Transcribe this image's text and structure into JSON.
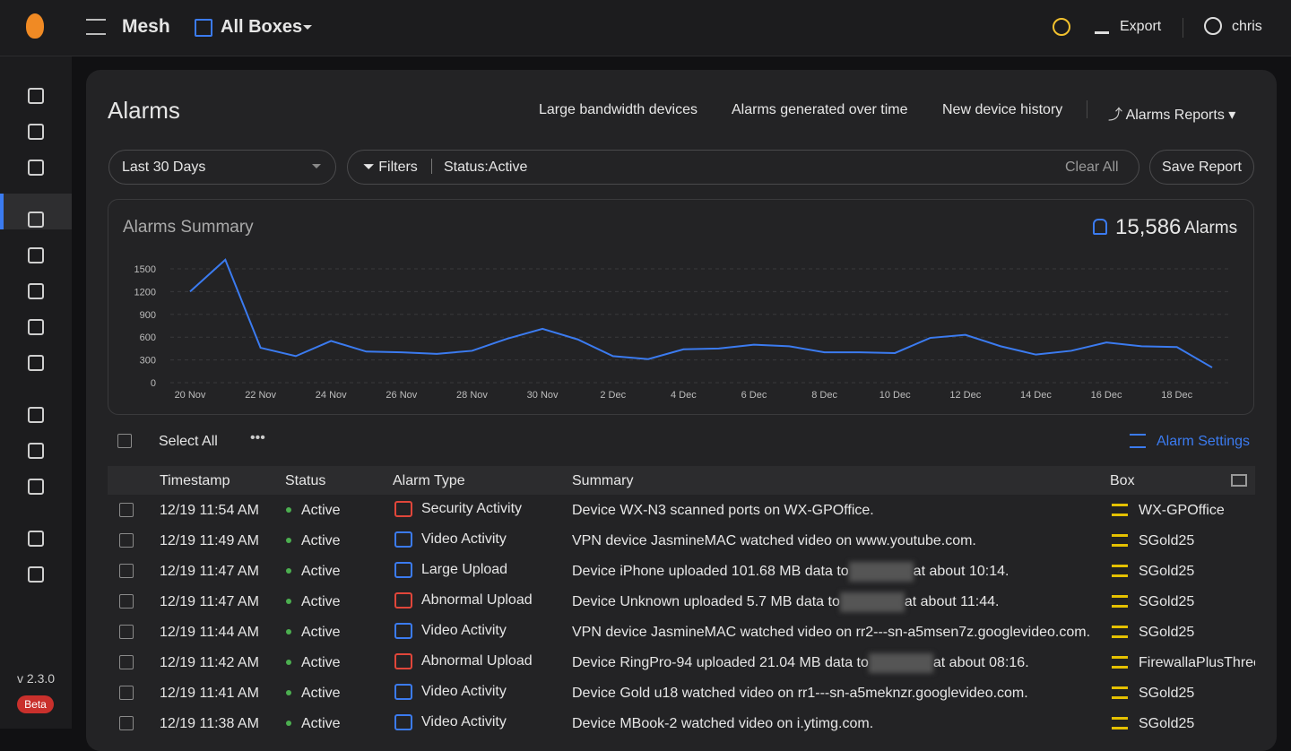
{
  "topbar": {
    "app": "Mesh",
    "box_selector": "All Boxes",
    "export": "Export",
    "user": "chris"
  },
  "sidebar": {
    "version": "v 2.3.0",
    "badge": "Beta"
  },
  "page": {
    "title": "Alarms",
    "links": [
      "Large bandwidth devices",
      "Alarms generated over time",
      "New device history"
    ],
    "reports": "Alarms Reports"
  },
  "filters": {
    "range": "Last 30 Days",
    "filters_label": "Filters",
    "active_filter": "Status:Active",
    "clear": "Clear All",
    "save": "Save Report"
  },
  "summary": {
    "title": "Alarms Summary",
    "count": "15,586",
    "count_label": "Alarms"
  },
  "chart": {
    "type": "line",
    "color": "#3b7bf0",
    "grid": true,
    "categories": [
      "20 Nov",
      null,
      "22 Nov",
      null,
      "24 Nov",
      null,
      "26 Nov",
      null,
      "28 Nov",
      null,
      "30 Nov",
      null,
      "2 Dec",
      null,
      "4 Dec",
      null,
      "6 Dec",
      null,
      "8 Dec",
      null,
      "10 Dec",
      null,
      "12 Dec",
      null,
      "14 Dec",
      null,
      "16 Dec",
      null,
      "18 Dec",
      null
    ],
    "values": [
      1200,
      1620,
      460,
      350,
      550,
      410,
      400,
      380,
      420,
      580,
      710,
      570,
      350,
      310,
      440,
      450,
      500,
      480,
      400,
      400,
      390,
      590,
      630,
      480,
      370,
      420,
      530,
      480,
      470,
      200
    ],
    "ylim": [
      0,
      1500
    ],
    "yticks": [
      0,
      300,
      600,
      900,
      1200,
      1500
    ]
  },
  "table": {
    "select_all": "Select All",
    "settings": "Alarm Settings",
    "columns": [
      "Timestamp",
      "Status",
      "Alarm Type",
      "Summary",
      "Box"
    ],
    "rows": [
      {
        "timestamp": "12/19 11:54 AM",
        "status": "Active",
        "type": "Security Activity",
        "icon_color": "#e0463a",
        "summary": [
          "Device WX-N3 scanned ports on WX-GPOffice."
        ],
        "box": "WX-GPOffice"
      },
      {
        "timestamp": "12/19 11:49 AM",
        "status": "Active",
        "type": "Video Activity",
        "icon_color": "#3b7bf0",
        "summary": [
          "VPN device JasmineMAC watched video on www.youtube.com."
        ],
        "box": "SGold25"
      },
      {
        "timestamp": "12/19 11:47 AM",
        "status": "Active",
        "type": "Large Upload",
        "icon_color": "#3b7bf0",
        "summary": [
          "Device iPhone uploaded 101.68 MB data to",
          "at about 10:14."
        ],
        "box": "SGold25"
      },
      {
        "timestamp": "12/19 11:47 AM",
        "status": "Active",
        "type": "Abnormal Upload",
        "icon_color": "#e0463a",
        "summary": [
          "Device Unknown uploaded 5.7 MB data to",
          "at about 11:44."
        ],
        "box": "SGold25"
      },
      {
        "timestamp": "12/19 11:44 AM",
        "status": "Active",
        "type": "Video Activity",
        "icon_color": "#3b7bf0",
        "summary": [
          "VPN device JasmineMAC watched video on rr2---sn-a5msen7z.googlevideo.com."
        ],
        "box": "SGold25"
      },
      {
        "timestamp": "12/19 11:42 AM",
        "status": "Active",
        "type": "Abnormal Upload",
        "icon_color": "#e0463a",
        "summary": [
          "Device RingPro-94 uploaded 21.04 MB data to",
          "at about 08:16."
        ],
        "box": "FirewallaPlusThree"
      },
      {
        "timestamp": "12/19 11:41 AM",
        "status": "Active",
        "type": "Video Activity",
        "icon_color": "#3b7bf0",
        "summary": [
          "Device Gold u18 watched video on rr1---sn-a5meknzr.googlevideo.com."
        ],
        "box": "SGold25"
      },
      {
        "timestamp": "12/19 11:38 AM",
        "status": "Active",
        "type": "Video Activity",
        "icon_color": "#3b7bf0",
        "summary": [
          "Device MBook-2 watched video on i.ytimg.com."
        ],
        "box": "SGold25"
      }
    ]
  }
}
